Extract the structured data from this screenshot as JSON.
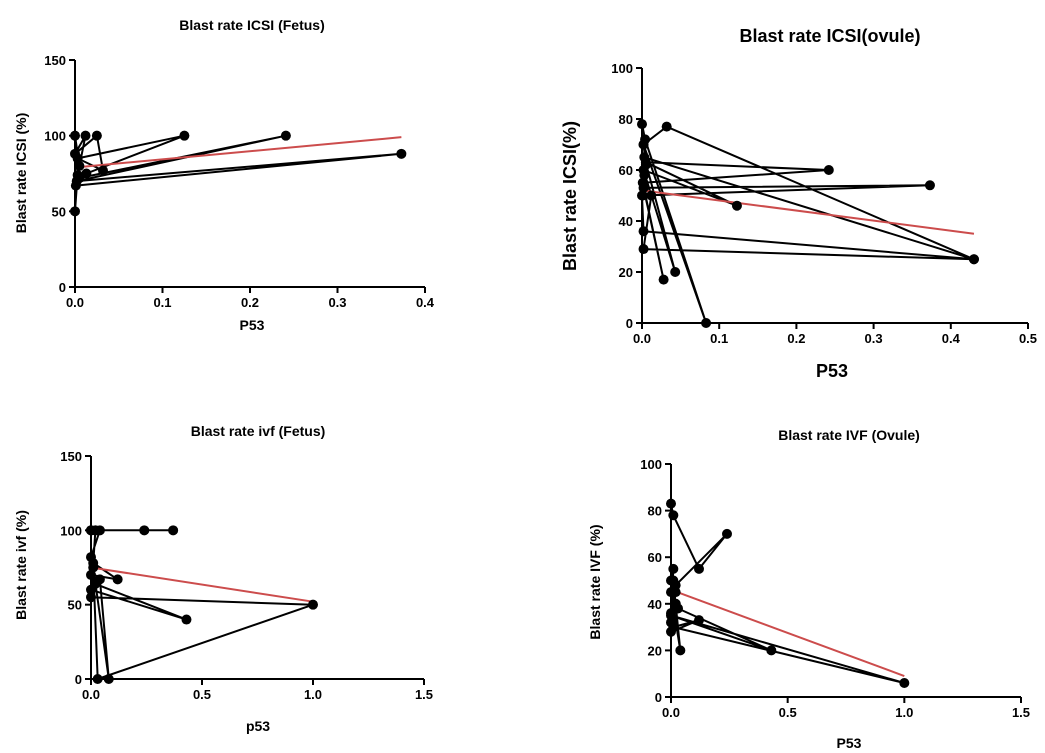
{
  "chart_data": [
    {
      "type": "scatter",
      "title": "Blast rate ICSI (Fetus)",
      "xlabel": "P53",
      "ylabel": "Blast rate ICSI (%)",
      "xlim": [
        0,
        0.4
      ],
      "ylim": [
        0,
        150
      ],
      "xticks": [
        0,
        0.1,
        0.2,
        0.3,
        0.4
      ],
      "yticks": [
        0,
        50,
        100,
        150
      ],
      "xtick_labels": [
        "0.0",
        "0.1",
        "0.2",
        "0.3",
        "0.4"
      ],
      "ytick_labels": [
        "0",
        "50",
        "100",
        "150"
      ],
      "grid": false,
      "series": [
        {
          "x": [
            0,
            0.005,
            0.012,
            0,
            0.025,
            0.032,
            0.003,
            0.125,
            0.013,
            0.005,
            0.241,
            0.002,
            0.373,
            0.001,
            0.003,
            0
          ],
          "y": [
            100,
            80,
            100,
            88,
            100,
            77,
            85,
            100,
            75,
            72,
            100,
            70,
            88,
            67,
            74,
            50
          ]
        }
      ],
      "trendline": {
        "x": [
          0,
          0.373
        ],
        "y": [
          79,
          99
        ]
      },
      "colors": {
        "points": "#000000",
        "trend": "#cc4c4c"
      }
    },
    {
      "type": "scatter",
      "title": "Blast rate ICSI(ovule)",
      "xlabel": "P53",
      "ylabel": "Blast rate ICSI(%)",
      "xlim": [
        0,
        0.5
      ],
      "ylim": [
        0,
        100
      ],
      "xticks": [
        0,
        0.1,
        0.2,
        0.3,
        0.4,
        0.5
      ],
      "yticks": [
        0,
        20,
        40,
        60,
        80,
        100
      ],
      "xtick_labels": [
        "0.0",
        "0.1",
        "0.2",
        "0.3",
        "0.4",
        "0.5"
      ],
      "ytick_labels": [
        "0",
        "20",
        "40",
        "60",
        "80",
        "100"
      ],
      "grid": false,
      "series": [
        {
          "x": [
            0,
            0.004,
            0.083,
            0.002,
            0.032,
            0.43,
            0.003,
            0.043,
            0.002,
            0.123,
            0.005,
            0.242,
            0.001,
            0.028,
            0.002,
            0.373,
            0.001,
            0.003,
            0.012,
            0.002,
            0.43,
            0.002,
            0,
            0.005,
            0.002
          ],
          "y": [
            78,
            72,
            0,
            70,
            77,
            25,
            65,
            20,
            60,
            46,
            63,
            60,
            55,
            17,
            53,
            54,
            50,
            58,
            50,
            29,
            25,
            36,
            50,
            62,
            70
          ]
        }
      ],
      "trendline": {
        "x": [
          0,
          0.43
        ],
        "y": [
          52,
          35
        ]
      },
      "colors": {
        "points": "#000000",
        "trend": "#cc4c4c"
      }
    },
    {
      "type": "scatter",
      "title": "Blast rate ivf (Fetus)",
      "xlabel": "p53",
      "ylabel": "Blast rate ivf (%)",
      "xlim": [
        0,
        1.5
      ],
      "ylim": [
        0,
        150
      ],
      "xticks": [
        0,
        0.5,
        1.0,
        1.5
      ],
      "yticks": [
        0,
        50,
        100,
        150
      ],
      "xtick_labels": [
        "0.0",
        "0.5",
        "1.0",
        "1.5"
      ],
      "ytick_labels": [
        "0",
        "50",
        "100",
        "150"
      ],
      "grid": false,
      "series": [
        {
          "x": [
            0,
            0.37,
            0,
            0.24,
            0.02,
            0.04,
            0,
            0.01,
            0.12,
            0,
            0.02,
            0.43,
            0,
            0.04,
            0.08,
            0.01,
            0.03,
            1.0,
            0,
            0.02
          ],
          "y": [
            100,
            100,
            100,
            100,
            100,
            100,
            82,
            78,
            67,
            70,
            64,
            40,
            60,
            67,
            0,
            75,
            0,
            50,
            55,
            100
          ]
        }
      ],
      "trendline": {
        "x": [
          0,
          1.0
        ],
        "y": [
          75,
          52
        ]
      },
      "colors": {
        "points": "#000000",
        "trend": "#cc4c4c"
      }
    },
    {
      "type": "scatter",
      "title": "Blast rate IVF (Ovule)",
      "xlabel": "P53",
      "ylabel": "Blast rate IVF (%)",
      "xlim": [
        0,
        1.5
      ],
      "ylim": [
        0,
        100
      ],
      "xticks": [
        0,
        0.5,
        1.0,
        1.5
      ],
      "yticks": [
        0,
        20,
        40,
        60,
        80,
        100
      ],
      "xtick_labels": [
        "0.0",
        "0.5",
        "1.0",
        "1.5"
      ],
      "ytick_labels": [
        "0",
        "20",
        "40",
        "60",
        "80",
        "100"
      ],
      "grid": false,
      "series": [
        {
          "x": [
            0,
            0.01,
            0.12,
            0.24,
            0.02,
            0.01,
            0.04,
            0,
            0.02,
            0.03,
            0.43,
            0,
            1.0,
            0.01,
            0.12,
            0,
            0.02,
            0,
            0.01,
            0,
            0.02,
            0
          ],
          "y": [
            83,
            78,
            55,
            70,
            48,
            50,
            20,
            45,
            40,
            38,
            20,
            35,
            6,
            30,
            33,
            28,
            45,
            32,
            55,
            50,
            40,
            36
          ]
        }
      ],
      "trendline": {
        "x": [
          0,
          1.0
        ],
        "y": [
          46,
          9
        ]
      },
      "colors": {
        "points": "#000000",
        "trend": "#cc4c4c"
      }
    }
  ]
}
